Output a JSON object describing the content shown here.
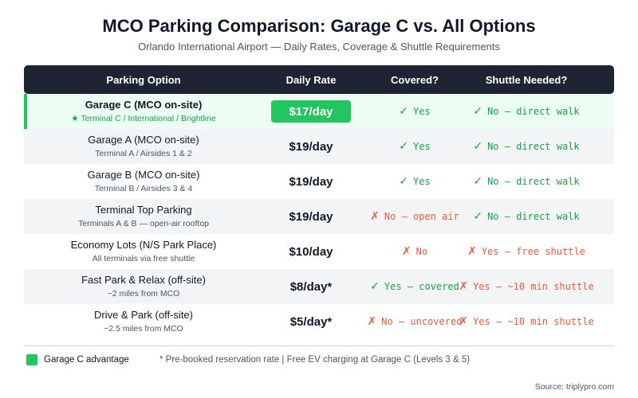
{
  "header": {
    "title": "MCO Parking Comparison: Garage C vs. All Options",
    "subtitle": "Orlando International Airport — Daily Rates, Coverage & Shuttle Requirements"
  },
  "chart_data": {
    "type": "table",
    "columns": [
      "Parking Option",
      "Daily Rate",
      "Covered?",
      "Shuttle Needed?"
    ],
    "rows": [
      {
        "name": "Garage C (MCO on-site)",
        "sub": "★ Terminal C / International / Brightline",
        "rate": "$17/day",
        "covered": {
          "ok": true,
          "text": "Yes"
        },
        "shuttle": {
          "ok": true,
          "text": "No — direct walk"
        },
        "highlight": true
      },
      {
        "name": "Garage A (MCO on-site)",
        "sub": "Terminal A / Airsides 1 & 2",
        "rate": "$19/day",
        "covered": {
          "ok": true,
          "text": "Yes"
        },
        "shuttle": {
          "ok": true,
          "text": "No — direct walk"
        },
        "highlight": false
      },
      {
        "name": "Garage B (MCO on-site)",
        "sub": "Terminal B / Airsides 3 & 4",
        "rate": "$19/day",
        "covered": {
          "ok": true,
          "text": "Yes"
        },
        "shuttle": {
          "ok": true,
          "text": "No — direct walk"
        },
        "highlight": false
      },
      {
        "name": "Terminal Top Parking",
        "sub": "Terminals A & B — open-air rooftop",
        "rate": "$19/day",
        "covered": {
          "ok": false,
          "text": "No — open air"
        },
        "shuttle": {
          "ok": true,
          "text": "No — direct walk"
        },
        "highlight": false
      },
      {
        "name": "Economy Lots (N/S Park Place)",
        "sub": "All terminals via free shuttle",
        "rate": "$10/day",
        "covered": {
          "ok": false,
          "text": "No"
        },
        "shuttle": {
          "ok": false,
          "text": "Yes — free shuttle"
        },
        "highlight": false
      },
      {
        "name": "Fast Park & Relax (off-site)",
        "sub": "~2 miles from MCO",
        "rate": "$8/day*",
        "covered": {
          "ok": true,
          "text": "Yes — covered"
        },
        "shuttle": {
          "ok": false,
          "text": "Yes — ~10 min shuttle"
        },
        "highlight": false
      },
      {
        "name": "Drive & Park (off-site)",
        "sub": "~2.5 miles from MCO",
        "rate": "$5/day*",
        "covered": {
          "ok": false,
          "text": "No — uncovered"
        },
        "shuttle": {
          "ok": false,
          "text": "Yes — ~10 min shuttle"
        },
        "highlight": false
      }
    ]
  },
  "marks": {
    "yes": "✓",
    "no": "✗"
  },
  "footer": {
    "legend_label": "Garage C advantage",
    "footnote": "* Pre-booked reservation rate | Free EV charging at Garage C (Levels 3 & 5)",
    "source": "Source: triplypro.com"
  },
  "colors": {
    "accent": "#22c55e",
    "header_bg": "#1e2433",
    "no": "#ef5a3c",
    "yes": "#16a34a"
  }
}
